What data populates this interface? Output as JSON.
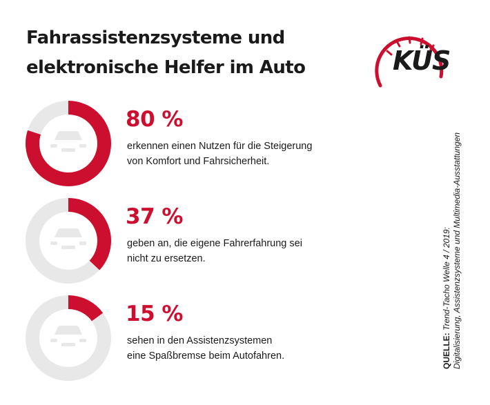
{
  "title_line1": "Fahrassistenzsysteme und",
  "title_line2": "elektronische Helfer im Auto",
  "logo_text": "KÜS",
  "colors": {
    "accent": "#cc0f2f",
    "track": "#e8e8e8",
    "car": "#ffffff",
    "text": "#1a1a1a"
  },
  "chart_data": {
    "type": "pie",
    "items": [
      {
        "value": 80,
        "label": "80 %",
        "line1": "erkennen einen Nutzen für die Steigerung",
        "line2": "von Komfort und Fahrsicherheit."
      },
      {
        "value": 37,
        "label": "37 %",
        "line1": "geben an, die eigene Fahrerfahrung sei",
        "line2": "nicht zu ersetzen."
      },
      {
        "value": 15,
        "label": "15 %",
        "line1": "sehen in den Assistenzsystemen",
        "line2": "eine Spaßbremse beim Autofahren."
      }
    ]
  },
  "source": {
    "label": "QUELLE:",
    "line1": "Trend-Tacho Welle 4 / 2019:",
    "line2": "Digitalisierung, Assistenzsysteme und Multimedia-Ausstattungen"
  }
}
